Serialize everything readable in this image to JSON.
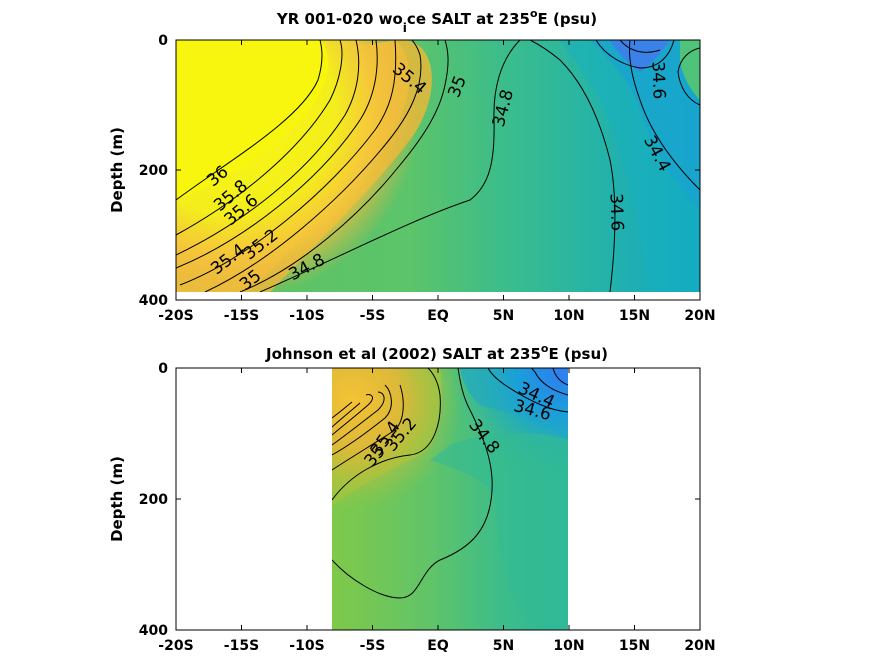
{
  "chart_data": [
    {
      "type": "heatmap",
      "title_main": "YR 001-020 wo",
      "title_sub": "i",
      "title_tail": "ce SALT at 235",
      "title_sup": "o",
      "title_end": "E (psu)",
      "ylabel": "Depth (m)",
      "xlabel": "",
      "xlim": [
        -20,
        20
      ],
      "ylim": [
        400,
        0
      ],
      "y_reversed": true,
      "x_ticks": [
        -20,
        -15,
        -10,
        -5,
        0,
        5,
        10,
        15,
        20
      ],
      "x_tick_labels": [
        "-20S",
        "-15S",
        "-10S",
        "-5S",
        "EQ",
        "5N",
        "10N",
        "15N",
        "20N"
      ],
      "y_ticks": [
        0,
        200,
        400
      ],
      "y_tick_labels": [
        "0",
        "200",
        "400"
      ],
      "data_x_range": [
        -20,
        20
      ],
      "data_y_range": [
        0,
        385
      ],
      "colormap": "parula",
      "color_range": [
        34.2,
        36.0
      ],
      "contour_labels": [
        {
          "text": "36",
          "x": -16.8,
          "y": 210,
          "angle": -40
        },
        {
          "text": "35.8",
          "x": -15.8,
          "y": 240,
          "angle": -40
        },
        {
          "text": "35.6",
          "x": -15.0,
          "y": 262,
          "angle": -40
        },
        {
          "text": "35.4",
          "x": -16.0,
          "y": 338,
          "angle": -38
        },
        {
          "text": "35.2",
          "x": -13.5,
          "y": 315,
          "angle": -38
        },
        {
          "text": "35",
          "x": -14.3,
          "y": 370,
          "angle": -38
        },
        {
          "text": "34.8",
          "x": -10.0,
          "y": 350,
          "angle": -28
        },
        {
          "text": "35.4",
          "x": -2.2,
          "y": 60,
          "angle": 40
        },
        {
          "text": "35",
          "x": 1.5,
          "y": 72,
          "angle": -68
        },
        {
          "text": "34.8",
          "x": 5.0,
          "y": 105,
          "angle": -75
        },
        {
          "text": "34.6",
          "x": 16.8,
          "y": 62,
          "angle": 88
        },
        {
          "text": "34.4",
          "x": 16.7,
          "y": 175,
          "angle": 62
        },
        {
          "text": "34.6",
          "x": 13.6,
          "y": 265,
          "angle": 88
        }
      ]
    },
    {
      "type": "heatmap",
      "title_main": "Johnson et al (2002) SALT at 235",
      "title_sup": "o",
      "title_end": "E (psu)",
      "ylabel": "Depth (m)",
      "xlabel": "",
      "xlim": [
        -20,
        20
      ],
      "ylim": [
        400,
        0
      ],
      "y_reversed": true,
      "x_ticks": [
        -20,
        -15,
        -10,
        -5,
        0,
        5,
        10,
        15,
        20
      ],
      "x_tick_labels": [
        "-20S",
        "-15S",
        "-10S",
        "-5S",
        "EQ",
        "5N",
        "10N",
        "15N",
        "20N"
      ],
      "y_ticks": [
        0,
        200,
        400
      ],
      "y_tick_labels": [
        "0",
        "200",
        "400"
      ],
      "data_x_range": [
        -8,
        10
      ],
      "data_y_range": [
        0,
        400
      ],
      "colormap": "parula",
      "color_range": [
        34.2,
        36.0
      ],
      "contour_labels": [
        {
          "text": "34.4",
          "x": 7.5,
          "y": 42,
          "angle": 25
        },
        {
          "text": "34.6",
          "x": 7.2,
          "y": 65,
          "angle": 15
        },
        {
          "text": "34.8",
          "x": 3.5,
          "y": 105,
          "angle": 52
        },
        {
          "text": "35.4",
          "x": -4.0,
          "y": 108,
          "angle": -55
        },
        {
          "text": "35.2",
          "x": -2.8,
          "y": 102,
          "angle": -50
        },
        {
          "text": "35",
          "x": -4.8,
          "y": 135,
          "angle": -50
        }
      ]
    }
  ]
}
